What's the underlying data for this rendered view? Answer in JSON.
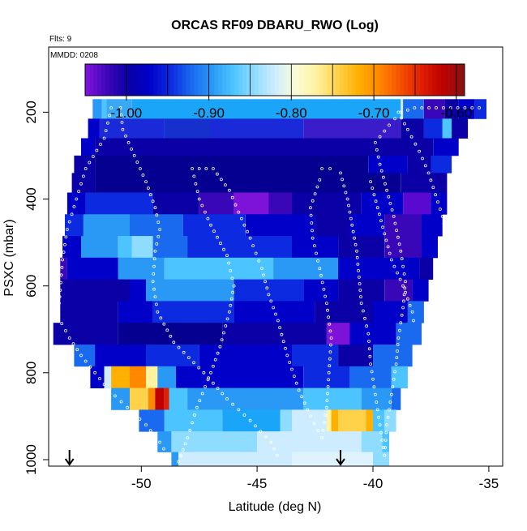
{
  "chart_data": {
    "type": "heatmap",
    "title": "ORCAS RF09 DBARU_RWO (Log)",
    "annotations": {
      "flights": "Flts: 9",
      "date": "MMDD: 0208"
    },
    "xlabel": "Latitude (deg N)",
    "ylabel": "PSXC (mbar)",
    "xlim": [
      -54,
      -34.4
    ],
    "ylim": [
      1015,
      50
    ],
    "y_reversed": true,
    "x_ticks": [
      -50,
      -45,
      -40,
      -35
    ],
    "y_ticks": [
      200,
      400,
      600,
      800,
      1000
    ],
    "colorbar": {
      "range": [
        -1.05,
        -0.59
      ],
      "ticks": [
        -1.0,
        -0.9,
        -0.8,
        -0.7,
        -0.6
      ],
      "tick_labels": [
        "-1.00",
        "-0.90",
        "-0.80",
        "-0.70",
        "-0.60"
      ],
      "colors": [
        "#7d12d9",
        "#3a07b8",
        "#0a00a5",
        "#0000c8",
        "#0c2be0",
        "#1a6af0",
        "#2a98f5",
        "#4cc4ff",
        "#8edcff",
        "#cdecff",
        "#fbfcd6",
        "#fff2a0",
        "#ffd24a",
        "#ffb000",
        "#ff8800",
        "#f55300",
        "#e02000",
        "#c00000",
        "#8c1010"
      ]
    },
    "grid": false,
    "flight_markers_x": [
      -53.1,
      -41.4
    ],
    "rows": [
      {
        "p": 190,
        "segs": [
          [
            -52.1,
            -51.7,
            "#2a98f5"
          ],
          [
            -51.7,
            -51.5,
            "#4cc4ff"
          ],
          [
            -51.5,
            -50.4,
            "#3aa8f5"
          ],
          [
            -50.4,
            -38.8,
            "#1aa5f8"
          ],
          [
            -38.8,
            -38.7,
            "#cdecff"
          ],
          [
            -38.7,
            -37.8,
            "#1a6af0"
          ],
          [
            -37.8,
            -36.9,
            "#3a07b8"
          ],
          [
            -36.9,
            -36.3,
            "#0a00a5"
          ],
          [
            -36.3,
            -35.6,
            "#0000c8"
          ],
          [
            -35.6,
            -35.1,
            "#0c2be0"
          ]
        ]
      },
      {
        "p": 240,
        "segs": [
          [
            -52.3,
            -51.8,
            "#0000c8"
          ],
          [
            -51.8,
            -49.0,
            "#1a2ad8"
          ],
          [
            -49.0,
            -47.0,
            "#1530cc"
          ],
          [
            -47.0,
            -43.0,
            "#1a2ad8"
          ],
          [
            -43.0,
            -38.8,
            "#3a1cc8"
          ],
          [
            -38.8,
            -37.8,
            "#0a00a5"
          ],
          [
            -37.8,
            -37.0,
            "#0c2be0"
          ],
          [
            -37.0,
            -36.6,
            "#4cc4ff"
          ],
          [
            -36.6,
            -35.9,
            "#0a00a5"
          ]
        ]
      },
      {
        "p": 280,
        "segs": [
          [
            -52.6,
            -52.0,
            "#0000c8"
          ],
          [
            -52.0,
            -37.4,
            "#0a00a5"
          ],
          [
            -37.4,
            -36.3,
            "#0000c8"
          ]
        ]
      },
      {
        "p": 320,
        "segs": [
          [
            -52.9,
            -52.0,
            "#0a00a5"
          ],
          [
            -52.0,
            -40.2,
            "#05008f"
          ],
          [
            -40.2,
            -38.5,
            "#0000c8"
          ],
          [
            -38.5,
            -37.5,
            "#0a00a5"
          ],
          [
            -37.5,
            -36.6,
            "#0c2be0"
          ]
        ]
      },
      {
        "p": 360,
        "segs": [
          [
            -53.0,
            -52.0,
            "#0a00a5"
          ],
          [
            -52.0,
            -38.8,
            "#05008f"
          ],
          [
            -38.8,
            -36.8,
            "#0a00a5"
          ]
        ]
      },
      {
        "p": 410,
        "segs": [
          [
            -53.2,
            -52.4,
            "#0000c8"
          ],
          [
            -52.4,
            -49.5,
            "#0c2be0"
          ],
          [
            -49.5,
            -47.5,
            "#0a00a5"
          ],
          [
            -47.5,
            -46.0,
            "#3a07b8"
          ],
          [
            -46.0,
            -44.5,
            "#7d12d9"
          ],
          [
            -44.5,
            -43.5,
            "#3a07b8"
          ],
          [
            -43.5,
            -40.5,
            "#0a00a5"
          ],
          [
            -40.5,
            -38.7,
            "#0000c8"
          ],
          [
            -38.7,
            -37.5,
            "#5a0ad0"
          ],
          [
            -37.5,
            -36.8,
            "#0000c8"
          ]
        ]
      },
      {
        "p": 460,
        "segs": [
          [
            -53.3,
            -52.5,
            "#0c2be0"
          ],
          [
            -52.5,
            -50.5,
            "#2a98f5"
          ],
          [
            -50.5,
            -48.2,
            "#1a6af0"
          ],
          [
            -48.2,
            -45.5,
            "#0c2be0"
          ],
          [
            -45.5,
            -42.5,
            "#0000c8"
          ],
          [
            -42.5,
            -41.0,
            "#0a00a5"
          ],
          [
            -41.0,
            -39.5,
            "#0000c8"
          ],
          [
            -39.5,
            -37.9,
            "#3a07b8"
          ],
          [
            -37.9,
            -37.0,
            "#0000c8"
          ]
        ]
      },
      {
        "p": 510,
        "segs": [
          [
            -53.4,
            -52.6,
            "#0000c8"
          ],
          [
            -52.6,
            -51.0,
            "#2a98f5"
          ],
          [
            -51.0,
            -50.4,
            "#4cc4ff"
          ],
          [
            -50.4,
            -49.5,
            "#8edcff"
          ],
          [
            -49.5,
            -48.0,
            "#1a6af0"
          ],
          [
            -48.0,
            -43.5,
            "#0c2be0"
          ],
          [
            -43.5,
            -41.5,
            "#0000c8"
          ],
          [
            -41.5,
            -39.5,
            "#0a00a5"
          ],
          [
            -39.5,
            -37.9,
            "#3a07b8"
          ],
          [
            -37.9,
            -37.2,
            "#0000c8"
          ]
        ]
      },
      {
        "p": 560,
        "segs": [
          [
            -53.5,
            -53.2,
            "#3a07b8"
          ],
          [
            -53.2,
            -51.0,
            "#0000c8"
          ],
          [
            -51.0,
            -49.0,
            "#2a98f5"
          ],
          [
            -49.0,
            -44.3,
            "#4cc4ff"
          ],
          [
            -44.3,
            -41.5,
            "#2a98f5"
          ],
          [
            -41.5,
            -38.0,
            "#0000c8"
          ],
          [
            -38.0,
            -37.4,
            "#0a00a5"
          ]
        ]
      },
      {
        "p": 610,
        "segs": [
          [
            -53.5,
            -50.5,
            "#0a00a5"
          ],
          [
            -50.5,
            -49.8,
            "#0000c8"
          ],
          [
            -49.8,
            -46.0,
            "#2a98f5"
          ],
          [
            -46.0,
            -43.0,
            "#0c2be0"
          ],
          [
            -43.0,
            -41.5,
            "#0000c8"
          ],
          [
            -41.5,
            -39.5,
            "#0a00a5"
          ],
          [
            -39.5,
            -38.3,
            "#3a07b8"
          ],
          [
            -38.3,
            -37.6,
            "#0000c8"
          ]
        ]
      },
      {
        "p": 660,
        "segs": [
          [
            -53.5,
            -51.0,
            "#0a00a5"
          ],
          [
            -51.0,
            -49.5,
            "#0000c8"
          ],
          [
            -49.5,
            -46.0,
            "#0c2be0"
          ],
          [
            -46.0,
            -42.5,
            "#0000c8"
          ],
          [
            -42.5,
            -40.0,
            "#0a00a5"
          ],
          [
            -40.0,
            -38.5,
            "#0000c8"
          ],
          [
            -38.5,
            -37.8,
            "#1a6af0"
          ]
        ]
      },
      {
        "p": 710,
        "segs": [
          [
            -53.8,
            -51.0,
            "#0a00a5"
          ],
          [
            -51.0,
            -46.5,
            "#05008f"
          ],
          [
            -46.5,
            -42.0,
            "#0a00a5"
          ],
          [
            -42.0,
            -41.0,
            "#7d12d9"
          ],
          [
            -41.0,
            -39.0,
            "#0000c8"
          ],
          [
            -39.0,
            -37.9,
            "#1a6af0"
          ]
        ]
      },
      {
        "p": 760,
        "segs": [
          [
            -52.9,
            -52.0,
            "#1a6af0"
          ],
          [
            -52.0,
            -49.8,
            "#0000c8"
          ],
          [
            -49.8,
            -47.5,
            "#0c2be0"
          ],
          [
            -47.5,
            -43.5,
            "#0000c8"
          ],
          [
            -43.5,
            -41.5,
            "#0c2be0"
          ],
          [
            -41.5,
            -40.0,
            "#0a00a5"
          ],
          [
            -40.0,
            -38.3,
            "#1a6af0"
          ]
        ]
      },
      {
        "p": 810,
        "segs": [
          [
            -52.2,
            -51.6,
            "#0000c8"
          ],
          [
            -51.6,
            -51.3,
            "#cdecff"
          ],
          [
            -51.3,
            -50.5,
            "#ffb000"
          ],
          [
            -50.5,
            -49.8,
            "#ff8800"
          ],
          [
            -49.8,
            -49.3,
            "#fff2a0"
          ],
          [
            -49.3,
            -48.5,
            "#2a98f5"
          ],
          [
            -48.5,
            -43.0,
            "#0000c8"
          ],
          [
            -43.0,
            -41.0,
            "#0c2be0"
          ],
          [
            -41.0,
            -39.2,
            "#1a6af0"
          ],
          [
            -39.2,
            -38.5,
            "#4cc4ff"
          ]
        ]
      },
      {
        "p": 860,
        "segs": [
          [
            -51.3,
            -50.5,
            "#2a98f5"
          ],
          [
            -50.5,
            -49.7,
            "#ffd24a"
          ],
          [
            -49.7,
            -49.4,
            "#ff8800"
          ],
          [
            -49.4,
            -49.0,
            "#c00000"
          ],
          [
            -49.0,
            -48.8,
            "#e02000"
          ],
          [
            -48.8,
            -48.0,
            "#4cc4ff"
          ],
          [
            -48.0,
            -43.0,
            "#2a98f5"
          ],
          [
            -43.0,
            -40.5,
            "#4cc4ff"
          ],
          [
            -40.5,
            -39.2,
            "#2a98f5"
          ],
          [
            -39.2,
            -38.8,
            "#1a6af0"
          ]
        ]
      },
      {
        "p": 910,
        "segs": [
          [
            -50.1,
            -49.0,
            "#1a6af0"
          ],
          [
            -49.0,
            -46.5,
            "#4cc4ff"
          ],
          [
            -46.5,
            -44.0,
            "#1aa5f8"
          ],
          [
            -44.0,
            -43.5,
            "#8edcff"
          ],
          [
            -43.5,
            -42.0,
            "#cdecff"
          ],
          [
            -42.0,
            -41.8,
            "#fff2a0"
          ],
          [
            -41.8,
            -41.5,
            "#ffb000"
          ],
          [
            -41.5,
            -40.3,
            "#ffd24a"
          ],
          [
            -40.3,
            -40.0,
            "#ffb000"
          ],
          [
            -40.0,
            -39.5,
            "#4cc4ff"
          ],
          [
            -39.5,
            -39.0,
            "#8edcff"
          ]
        ]
      },
      {
        "p": 960,
        "segs": [
          [
            -49.3,
            -48.7,
            "#2a98f5"
          ],
          [
            -48.7,
            -45.0,
            "#8edcff"
          ],
          [
            -45.0,
            -40.5,
            "#cdecff"
          ],
          [
            -40.5,
            -39.6,
            "#8edcff"
          ],
          [
            -39.6,
            -39.3,
            "#4cc4ff"
          ]
        ]
      },
      {
        "p": 1005,
        "segs": [
          [
            -48.7,
            -48.4,
            "#2a98f5"
          ],
          [
            -48.4,
            -43.5,
            "#cdecff"
          ],
          [
            -43.5,
            -40.0,
            "#dff3ff"
          ],
          [
            -40.0,
            -39.3,
            "#8edcff"
          ]
        ]
      }
    ],
    "tracks": [
      [
        [
          -51.3,
          190
        ],
        [
          -51.6,
          260
        ],
        [
          -52.4,
          330
        ],
        [
          -52.8,
          400
        ],
        [
          -53.2,
          470
        ],
        [
          -53.4,
          540
        ],
        [
          -53.5,
          610
        ],
        [
          -53.6,
          670
        ],
        [
          -53.1,
          720
        ],
        [
          -52.6,
          760
        ],
        [
          -52.0,
          800
        ],
        [
          -51.4,
          840
        ],
        [
          -50.6,
          880
        ],
        [
          -49.8,
          920
        ],
        [
          -49.2,
          960
        ],
        [
          -48.7,
          1005
        ]
      ],
      [
        [
          -50.9,
          190
        ],
        [
          -50.8,
          240
        ],
        [
          -50.3,
          300
        ],
        [
          -49.8,
          360
        ],
        [
          -49.4,
          420
        ],
        [
          -49.2,
          470
        ],
        [
          -49.4,
          520
        ],
        [
          -49.5,
          590
        ],
        [
          -49.3,
          660
        ],
        [
          -48.6,
          730
        ],
        [
          -47.3,
          800
        ],
        [
          -46.3,
          860
        ],
        [
          -45.3,
          910
        ],
        [
          -44.4,
          960
        ],
        [
          -44.0,
          1005
        ]
      ],
      [
        [
          -48.4,
          1005
        ],
        [
          -48.0,
          950
        ],
        [
          -47.6,
          880
        ],
        [
          -47.0,
          800
        ],
        [
          -46.6,
          740
        ],
        [
          -46.2,
          660
        ],
        [
          -46.0,
          600
        ],
        [
          -46.3,
          530
        ],
        [
          -47.0,
          460
        ],
        [
          -47.5,
          400
        ],
        [
          -47.8,
          330
        ]
      ],
      [
        [
          -47.8,
          330
        ],
        [
          -46.9,
          330
        ]
      ],
      [
        [
          -46.9,
          330
        ],
        [
          -46.2,
          380
        ],
        [
          -45.8,
          430
        ],
        [
          -45.3,
          490
        ],
        [
          -44.8,
          560
        ],
        [
          -44.5,
          620
        ],
        [
          -44.1,
          680
        ],
        [
          -43.7,
          760
        ],
        [
          -43.2,
          840
        ],
        [
          -42.7,
          900
        ],
        [
          -42.2,
          950
        ]
      ],
      [
        [
          -42.2,
          950
        ],
        [
          -42.0,
          880
        ],
        [
          -41.9,
          800
        ],
        [
          -41.8,
          720
        ],
        [
          -42.0,
          640
        ],
        [
          -42.3,
          560
        ],
        [
          -42.6,
          490
        ],
        [
          -42.7,
          420
        ],
        [
          -42.2,
          340
        ]
      ],
      [
        [
          -42.2,
          330
        ],
        [
          -41.5,
          330
        ]
      ],
      [
        [
          -41.4,
          340
        ],
        [
          -41.1,
          400
        ],
        [
          -40.9,
          460
        ],
        [
          -40.7,
          520
        ],
        [
          -40.6,
          580
        ],
        [
          -40.5,
          640
        ],
        [
          -40.2,
          710
        ],
        [
          -40.1,
          780
        ],
        [
          -39.9,
          850
        ],
        [
          -39.7,
          920
        ],
        [
          -39.5,
          990
        ]
      ],
      [
        [
          -39.5,
          990
        ],
        [
          -39.4,
          920
        ],
        [
          -39.2,
          850
        ],
        [
          -39.0,
          780
        ],
        [
          -38.9,
          720
        ],
        [
          -38.7,
          650
        ],
        [
          -38.6,
          590
        ],
        [
          -38.8,
          520
        ],
        [
          -39.1,
          440
        ],
        [
          -39.4,
          380
        ],
        [
          -39.7,
          320
        ],
        [
          -39.9,
          270
        ]
      ],
      [
        [
          -39.9,
          270
        ],
        [
          -39.3,
          230
        ],
        [
          -38.8,
          200
        ],
        [
          -38.2,
          190
        ],
        [
          -35.1,
          190
        ]
      ],
      [
        [
          -38.9,
          200
        ],
        [
          -38.5,
          240
        ],
        [
          -38.0,
          290
        ],
        [
          -37.6,
          340
        ],
        [
          -37.3,
          390
        ],
        [
          -37.0,
          440
        ],
        [
          -36.8,
          490
        ]
      ],
      [
        [
          -40.1,
          360
        ],
        [
          -39.8,
          420
        ],
        [
          -39.5,
          480
        ],
        [
          -39.2,
          540
        ],
        [
          -38.7,
          600
        ],
        [
          -38.3,
          660
        ],
        [
          -38.2,
          700
        ]
      ]
    ]
  }
}
